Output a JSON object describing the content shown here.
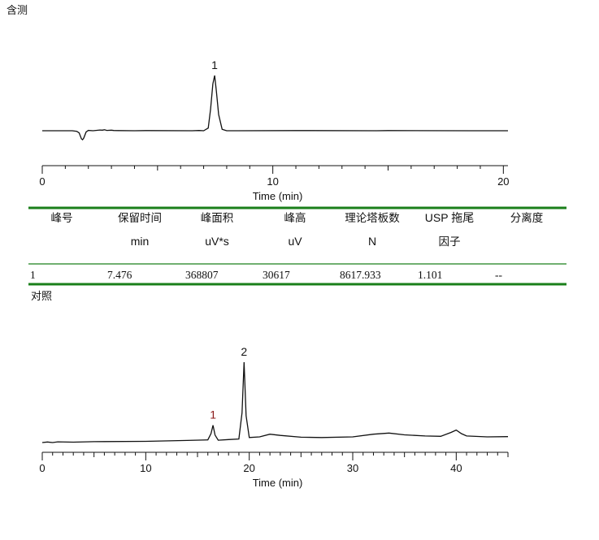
{
  "sections": {
    "sample_label": "含测",
    "reference_label": "对照"
  },
  "colors": {
    "trace": "#111111",
    "rule_green": "#1a7f1a",
    "peak_label_red": "#8b1a1a"
  },
  "table": {
    "headers": [
      {
        "line1": "峰号",
        "line2": ""
      },
      {
        "line1": "保留时间",
        "line2": "min"
      },
      {
        "line1": "峰面积",
        "line2": "uV*s"
      },
      {
        "line1": "峰高",
        "line2": "uV"
      },
      {
        "line1": "理论塔板数",
        "line2": "N"
      },
      {
        "line1": "USP 拖尾",
        "line2": "因子"
      },
      {
        "line1": "分离度",
        "line2": ""
      }
    ],
    "rows": [
      [
        "1",
        "7.476",
        "368807",
        "30617",
        "8617.933",
        "1.101",
        "--"
      ]
    ]
  },
  "chart_data": [
    {
      "type": "line",
      "title": "含测",
      "xlabel": "Time (min)",
      "ylabel": "",
      "xlim": [
        0,
        20.2
      ],
      "x_ticks": [
        0,
        10,
        20
      ],
      "grid": false,
      "annotations": [
        {
          "label": "1",
          "x": 7.476
        }
      ],
      "series": [
        {
          "x": [
            0,
            1.3,
            1.5,
            1.6,
            1.7,
            1.75,
            1.8,
            1.9,
            2.0,
            2.2,
            2.5,
            2.6,
            2.7,
            2.8,
            3.0,
            3.1,
            3.3,
            4.0,
            4.5,
            6.5,
            6.8,
            7.0,
            7.2,
            7.3,
            7.4,
            7.476,
            7.55,
            7.65,
            7.8,
            8.0,
            8.5,
            11.0,
            14.5,
            15.0,
            18.5,
            20.2
          ],
          "y": [
            0,
            0,
            -300,
            -1200,
            -4500,
            -5000,
            -4000,
            -700,
            200,
            0,
            400,
            300,
            550,
            200,
            300,
            150,
            80,
            0,
            100,
            0,
            150,
            0,
            1500,
            12000,
            26000,
            30617,
            22000,
            9000,
            800,
            0,
            0,
            80,
            0,
            80,
            0,
            0
          ]
        }
      ]
    },
    {
      "type": "line",
      "title": "对照",
      "xlabel": "Time (min)",
      "ylabel": "",
      "xlim": [
        0,
        45
      ],
      "x_ticks": [
        0,
        10,
        20,
        30,
        40
      ],
      "grid": false,
      "annotations": [
        {
          "label": "1",
          "x": 16.5
        },
        {
          "label": "2",
          "x": 19.5
        }
      ],
      "series": [
        {
          "x": [
            0,
            0.5,
            1.0,
            1.5,
            3,
            5,
            10,
            14,
            16,
            16.3,
            16.5,
            16.7,
            17.0,
            18.0,
            19.0,
            19.3,
            19.5,
            19.7,
            20.0,
            21.0,
            22.0,
            23.0,
            25.0,
            27.0,
            30.0,
            32.0,
            33.5,
            35.0,
            37.0,
            38.5,
            39.5,
            40.0,
            40.5,
            41.0,
            43.0,
            45.0
          ],
          "y": [
            0,
            200,
            0,
            250,
            150,
            300,
            400,
            700,
            900,
            3000,
            5800,
            2500,
            800,
            1000,
            1200,
            10000,
            27000,
            9000,
            1700,
            1900,
            2800,
            2400,
            1800,
            1700,
            1900,
            2800,
            3200,
            2600,
            2200,
            2100,
            3400,
            4200,
            3000,
            2200,
            1900,
            2000
          ]
        }
      ]
    }
  ]
}
